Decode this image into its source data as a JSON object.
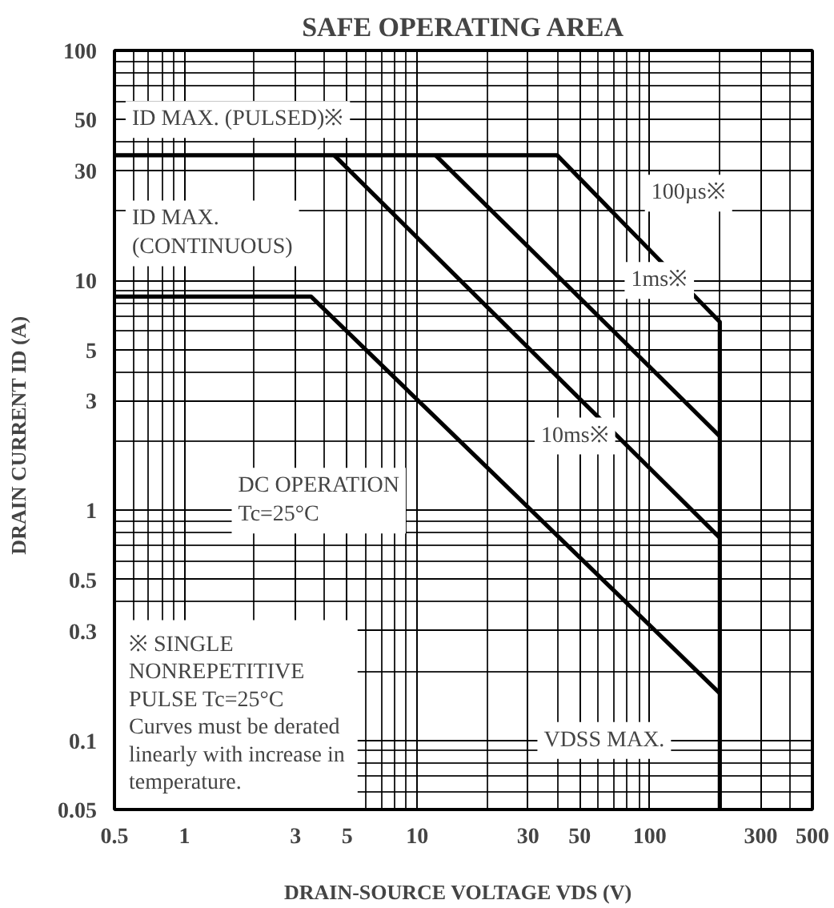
{
  "chart_data": {
    "type": "line",
    "title": "SAFE OPERATING AREA",
    "xlabel": "DRAIN-SOURCE VOLTAGE  VDS  (V)",
    "ylabel": "DRAIN CURRENT  ID  (A)",
    "log": "xy",
    "grid": true,
    "marker": "none",
    "line_style": "solid",
    "xlim": [
      0.5,
      500
    ],
    "ylim": [
      0.05,
      100
    ],
    "xticks": [
      0.5,
      1,
      3,
      5,
      10,
      30,
      50,
      100,
      300,
      500
    ],
    "yticks": [
      0.05,
      0.1,
      0.3,
      0.5,
      1,
      3,
      5,
      10,
      30,
      50,
      100
    ],
    "series": [
      {
        "color": "#000000",
        "x": [
          0.5,
          40,
          200,
          200
        ],
        "values": [
          35,
          35,
          6.6,
          0.05
        ]
      },
      {
        "color": "#000000",
        "x": [
          12,
          200
        ],
        "values": [
          35,
          2.1
        ]
      },
      {
        "color": "#000000",
        "x": [
          4.4,
          200
        ],
        "values": [
          35,
          0.76
        ]
      },
      {
        "color": "#000000",
        "x": [
          0.5,
          3.5,
          200
        ],
        "values": [
          8.5,
          8.5,
          0.16
        ]
      }
    ],
    "annotations": [
      "ID MAX. (PULSED)※",
      "ID MAX.\n(CONTINUOUS)",
      "100µs※",
      "1ms※",
      "10ms※",
      "DC OPERATION\nTc=25°C",
      "VDSS MAX.",
      "※   SINGLE\n      NONREPETITIVE\n      PULSE Tc=25°C\nCurves must be derated\nlinearly with increase in\ntemperature."
    ]
  }
}
